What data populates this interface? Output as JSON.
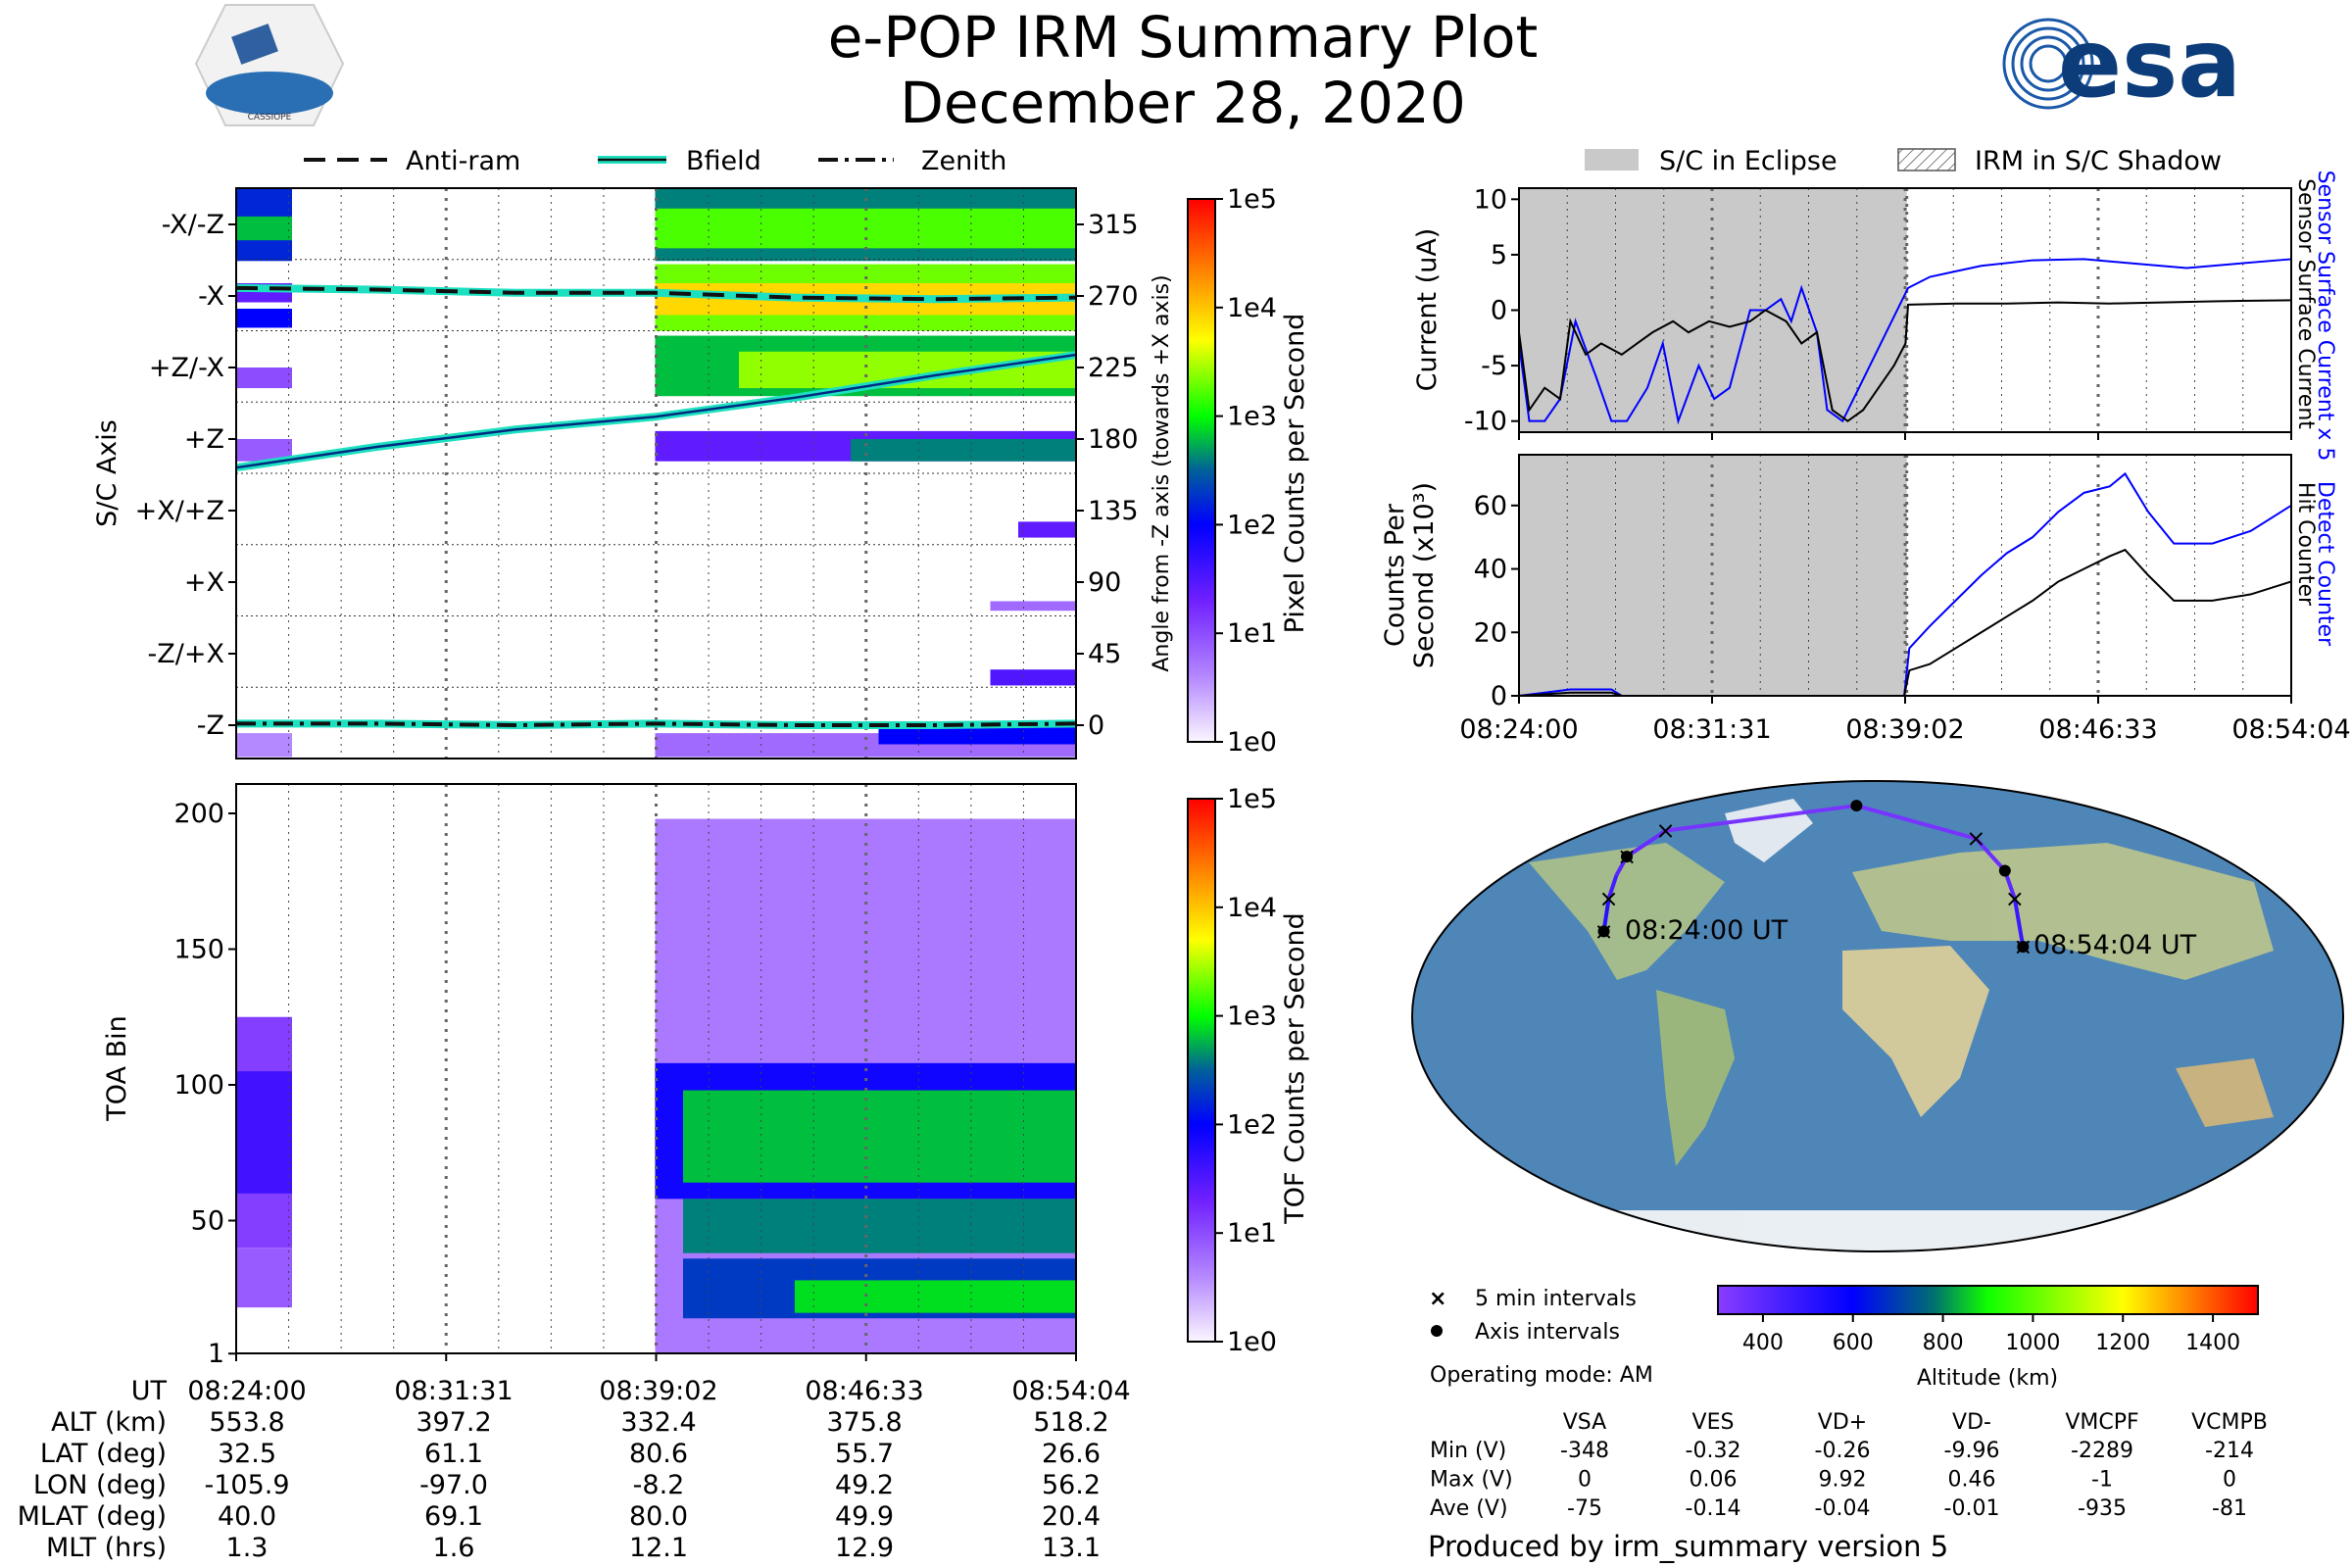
{
  "header": {
    "title": "e-POP IRM Summary Plot",
    "date": "December 28, 2020",
    "mission_logo_text": "CASSIOPE",
    "agency_logo_text": "esa"
  },
  "legend_left": {
    "antiram": "Anti-ram",
    "bfield": "Bfield",
    "zenith": "Zenith"
  },
  "legend_right": {
    "eclipse": "S/C in Eclipse",
    "shadow": "IRM in S/C Shadow"
  },
  "labels": {
    "sc_axis": "S/C Axis",
    "angle_axis": "Angle from -Z axis (towards +X axis)",
    "pixel_counts": "Pixel Counts per Second",
    "toa_bin": "TOA Bin",
    "tof_counts": "TOF Counts per Second",
    "current": "Current (uA)",
    "counts_line1": "Counts Per",
    "counts_line2": "Second (x10³)",
    "sensor_current_x5": "Sensor Surface Current x 5",
    "sensor_current": "Sensor Surface Current",
    "detect_counter": "Detect Counter",
    "hit_counter": "Hit Counter",
    "start_ut": "08:24:00 UT",
    "end_ut": "08:54:04 UT",
    "five_min": "5 min intervals",
    "axis_intervals": "Axis intervals",
    "operating_mode": "Operating mode: AM",
    "altitude_km": "Altitude (km)",
    "produced_by": "Produced by irm_summary version 5"
  },
  "ephemeris": {
    "row_labels": [
      "UT",
      "ALT (km)",
      "LAT (deg)",
      "LON (deg)",
      "MLAT (deg)",
      "MLT (hrs)"
    ],
    "columns": [
      [
        "08:24:00",
        "553.8",
        "32.5",
        "-105.9",
        "40.0",
        "1.3"
      ],
      [
        "08:31:31",
        "397.2",
        "61.1",
        "-97.0",
        "69.1",
        "1.6"
      ],
      [
        "08:39:02",
        "332.4",
        "80.6",
        "-8.2",
        "80.0",
        "12.1"
      ],
      [
        "08:46:33",
        "375.8",
        "55.7",
        "49.2",
        "49.9",
        "12.9"
      ],
      [
        "08:54:04",
        "518.2",
        "26.6",
        "56.2",
        "20.4",
        "13.1"
      ]
    ]
  },
  "voltages": {
    "headers": [
      "VSA",
      "VES",
      "VD+",
      "VD-",
      "VMCPF",
      "VCMPB"
    ],
    "rows": [
      {
        "label": "Min (V)",
        "values": [
          "-348",
          "-0.32",
          "-0.26",
          "-9.96",
          "-2289",
          "-214"
        ]
      },
      {
        "label": "Max (V)",
        "values": [
          "0",
          "0.06",
          "9.92",
          "0.46",
          "-1",
          "0"
        ]
      },
      {
        "label": "Ave (V)",
        "values": [
          "-75",
          "-0.14",
          "-0.04",
          "-0.01",
          "-935",
          "-81"
        ]
      }
    ]
  },
  "colors": {
    "blue_series": "#0000ff",
    "eclipse": "#c8c9c8",
    "orbit": "#7a2cff",
    "line_cyan": "#1de0c0"
  },
  "chart_data": [
    {
      "id": "sc_axis_spectrogram",
      "type": "heatmap",
      "xlabel": "UT",
      "ylabel": "S/C Axis",
      "y2label": "Angle from -Z axis (towards +X axis)",
      "x_ticks": [
        "08:24:00",
        "08:31:31",
        "08:39:02",
        "08:46:33",
        "08:54:04"
      ],
      "xlim_min": [
        0,
        30.07
      ],
      "ylim_deg": [
        -22,
        338
      ],
      "axis_labels": [
        "-X/-Z",
        "-X",
        "+Z/-X",
        "+Z",
        "+X/+Z",
        "+X",
        "-Z/+X",
        "-Z"
      ],
      "axis_label_angles": [
        315,
        270,
        225,
        180,
        135,
        90,
        45,
        0
      ],
      "angle_ticks": [
        315,
        270,
        225,
        180,
        135,
        90,
        45,
        0
      ],
      "colorbar": {
        "label": "Pixel Counts per Second",
        "ticks": [
          "1e5",
          "1e4",
          "1e3",
          "1e2",
          "1e1",
          "1e0"
        ],
        "log_range": [
          0,
          5
        ]
      },
      "regions": [
        {
          "t": [
            0,
            2
          ],
          "deg": [
            292,
            338
          ],
          "level": 2.2
        },
        {
          "t": [
            0,
            2
          ],
          "deg": [
            305,
            320
          ],
          "level": 2.8
        },
        {
          "t": [
            0,
            2
          ],
          "deg": [
            250,
            262
          ],
          "level": 2.0
        },
        {
          "t": [
            0,
            2
          ],
          "deg": [
            266,
            278
          ],
          "level": 1.4
        },
        {
          "t": [
            0,
            2
          ],
          "deg": [
            212,
            225
          ],
          "level": 1.0
        },
        {
          "t": [
            0,
            2
          ],
          "deg": [
            166,
            180
          ],
          "level": 0.9
        },
        {
          "t": [
            0,
            2
          ],
          "deg": [
            -20,
            -5
          ],
          "level": 0.6
        },
        {
          "t": [
            15,
            30.07
          ],
          "deg": [
            292,
            338
          ],
          "level": 2.6
        },
        {
          "t": [
            15,
            30.07
          ],
          "deg": [
            300,
            325
          ],
          "level": 3.2
        },
        {
          "t": [
            15,
            30.07
          ],
          "deg": [
            248,
            290
          ],
          "level": 3.3
        },
        {
          "t": [
            15,
            30.07
          ],
          "deg": [
            258,
            278
          ],
          "level": 3.9
        },
        {
          "t": [
            15,
            30.07
          ],
          "deg": [
            207,
            245
          ],
          "level": 2.8
        },
        {
          "t": [
            18,
            30.07
          ],
          "deg": [
            212,
            235
          ],
          "level": 3.4
        },
        {
          "t": [
            15,
            30.07
          ],
          "deg": [
            166,
            185
          ],
          "level": 1.4
        },
        {
          "t": [
            22,
            30.07
          ],
          "deg": [
            166,
            180
          ],
          "level": 2.6
        },
        {
          "t": [
            28,
            30.07
          ],
          "deg": [
            118,
            128
          ],
          "level": 1.4
        },
        {
          "t": [
            27,
            30.07
          ],
          "deg": [
            72,
            78
          ],
          "level": 0.8
        },
        {
          "t": [
            27,
            30.07
          ],
          "deg": [
            25,
            35
          ],
          "level": 1.5
        },
        {
          "t": [
            15,
            30.07
          ],
          "deg": [
            -20,
            -5
          ],
          "level": 0.8
        },
        {
          "t": [
            23,
            30.07
          ],
          "deg": [
            -12,
            0
          ],
          "level": 2.0
        }
      ],
      "series": [
        {
          "name": "Anti-ram",
          "style": "dashed",
          "t": [
            0,
            5,
            10,
            15,
            20,
            25,
            30.07
          ],
          "deg": [
            275,
            274,
            272,
            272,
            269,
            268,
            269
          ]
        },
        {
          "name": "Bfield",
          "style": "solid",
          "t": [
            0,
            5,
            10,
            15,
            20,
            25,
            30.07
          ],
          "deg": [
            162,
            175,
            186,
            194,
            206,
            220,
            233
          ]
        },
        {
          "name": "Zenith",
          "style": "dashdot",
          "t": [
            0,
            5,
            10,
            15,
            20,
            25,
            30.07
          ],
          "deg": [
            1,
            1,
            0,
            1,
            0,
            0,
            1
          ]
        }
      ]
    },
    {
      "id": "toa_spectrogram",
      "type": "heatmap",
      "ylabel": "TOA Bin",
      "y_ticks": [
        1,
        50,
        100,
        150,
        200
      ],
      "ylim": [
        1,
        210
      ],
      "colorbar": {
        "label": "TOF Counts per Second",
        "ticks": [
          "1e5",
          "1e4",
          "1e3",
          "1e2",
          "1e1",
          "1e0"
        ],
        "log_range": [
          0,
          5
        ]
      },
      "regions": [
        {
          "t": [
            0,
            2
          ],
          "bin": [
            40,
            125
          ],
          "level": 1.1
        },
        {
          "t": [
            0,
            2
          ],
          "bin": [
            60,
            105
          ],
          "level": 1.6
        },
        {
          "t": [
            0,
            2
          ],
          "bin": [
            18,
            40
          ],
          "level": 0.9
        },
        {
          "t": [
            15,
            30.07
          ],
          "bin": [
            1,
            198
          ],
          "level": 0.7
        },
        {
          "t": [
            15,
            30.07
          ],
          "bin": [
            58,
            108
          ],
          "level": 1.9
        },
        {
          "t": [
            16,
            30.07
          ],
          "bin": [
            64,
            98
          ],
          "level": 2.8
        },
        {
          "t": [
            16,
            30.07
          ],
          "bin": [
            38,
            58
          ],
          "level": 2.6
        },
        {
          "t": [
            16,
            30.07
          ],
          "bin": [
            14,
            36
          ],
          "level": 2.3
        },
        {
          "t": [
            20,
            30.07
          ],
          "bin": [
            16,
            28
          ],
          "level": 2.9
        }
      ]
    },
    {
      "id": "current_plot",
      "type": "line",
      "ylabel": "Current (uA)",
      "y_ticks": [
        10,
        5,
        0,
        -5,
        -10
      ],
      "ylim": [
        -11,
        11
      ],
      "eclipse_min": [
        0,
        15.1
      ],
      "series": [
        {
          "name": "Sensor Surface Current",
          "color": "#000000",
          "t": [
            0,
            0.4,
            1,
            1.6,
            2,
            2.6,
            3.2,
            4,
            4.6,
            5.2,
            6,
            6.6,
            7.4,
            8.2,
            9,
            9.6,
            10.4,
            11,
            11.6,
            12.2,
            12.8,
            13.4,
            14,
            14.6,
            15.05,
            15.15,
            17,
            19,
            21,
            23,
            25,
            27,
            30.07
          ],
          "values": [
            -2,
            -9,
            -7,
            -8,
            -1,
            -4,
            -3,
            -4,
            -3,
            -2,
            -1,
            -2,
            -1,
            -1.5,
            -1,
            0,
            -1,
            -3,
            -2,
            -9,
            -10,
            -9,
            -7,
            -5,
            -3,
            0.5,
            0.6,
            0.6,
            0.7,
            0.6,
            0.7,
            0.8,
            0.9
          ]
        },
        {
          "name": "Sensor Surface Current x 5",
          "color": "#0000ff",
          "t": [
            0,
            0.4,
            1,
            1.6,
            2.2,
            3,
            3.6,
            4.2,
            5,
            5.6,
            6.2,
            7,
            7.6,
            8.2,
            9,
            9.6,
            10.2,
            10.6,
            11,
            11.6,
            12,
            12.6,
            15.15,
            16,
            17,
            18,
            20,
            22,
            24,
            26,
            28,
            30.07
          ],
          "values": [
            -3,
            -10,
            -10,
            -8,
            -1,
            -6,
            -10,
            -10,
            -7,
            -3,
            -10,
            -5,
            -8,
            -7,
            0,
            0,
            1,
            -1,
            2,
            -2,
            -9,
            -10,
            2,
            3,
            3.5,
            4,
            4.5,
            4.6,
            4.2,
            3.8,
            4.2,
            4.6
          ]
        }
      ]
    },
    {
      "id": "counts_plot",
      "type": "line",
      "ylabel": "Counts Per Second (x10³)",
      "x_ticks": [
        "08:24:00",
        "08:31:31",
        "08:39:02",
        "08:46:33",
        "08:54:04"
      ],
      "y_ticks": [
        0,
        20,
        40,
        60
      ],
      "ylim": [
        0,
        76
      ],
      "eclipse_min": [
        0,
        15.1
      ],
      "series": [
        {
          "name": "Hit Counter",
          "color": "#000000",
          "t": [
            0,
            2,
            3.6,
            4,
            15.0,
            15.2,
            16,
            17,
            18,
            19,
            20,
            21,
            22,
            23,
            23.6,
            24.5,
            25.5,
            27,
            28.5,
            30.07
          ],
          "values": [
            0,
            1,
            1,
            0,
            0,
            8,
            10,
            15,
            20,
            25,
            30,
            36,
            40,
            44,
            46,
            38,
            30,
            30,
            32,
            36
          ]
        },
        {
          "name": "Detect Counter",
          "color": "#0000ff",
          "t": [
            0,
            2,
            3.6,
            4,
            15.0,
            15.2,
            16,
            17,
            18,
            19,
            20,
            21,
            22,
            23,
            23.6,
            24.5,
            25.5,
            27,
            28.5,
            30.07
          ],
          "values": [
            0,
            2,
            2,
            0,
            0,
            15,
            22,
            30,
            38,
            45,
            50,
            58,
            64,
            66,
            70,
            58,
            48,
            48,
            52,
            60
          ]
        }
      ]
    },
    {
      "id": "orbit_map",
      "type": "scatter",
      "points_latlon": [
        [
          32.5,
          -105.9
        ],
        [
          45,
          -104
        ],
        [
          54,
          -101
        ],
        [
          61.1,
          -97.0
        ],
        [
          71,
          -82
        ],
        [
          80.6,
          -8.2
        ],
        [
          68,
          38
        ],
        [
          55.7,
          49.2
        ],
        [
          45,
          53
        ],
        [
          26.6,
          56.2
        ]
      ],
      "axis_points_latlon": [
        [
          32.5,
          -105.9
        ],
        [
          61.1,
          -97.0
        ],
        [
          80.6,
          -8.2
        ],
        [
          55.7,
          49.2
        ],
        [
          26.6,
          56.2
        ]
      ],
      "altitude_km": [
        553.8,
        480,
        430,
        397.2,
        350,
        332.4,
        350,
        375.8,
        430,
        518.2
      ],
      "colorbar": {
        "label": "Altitude (km)",
        "ticks": [
          400,
          600,
          800,
          1000,
          1200,
          1400
        ],
        "range": [
          300,
          1500
        ]
      }
    }
  ]
}
